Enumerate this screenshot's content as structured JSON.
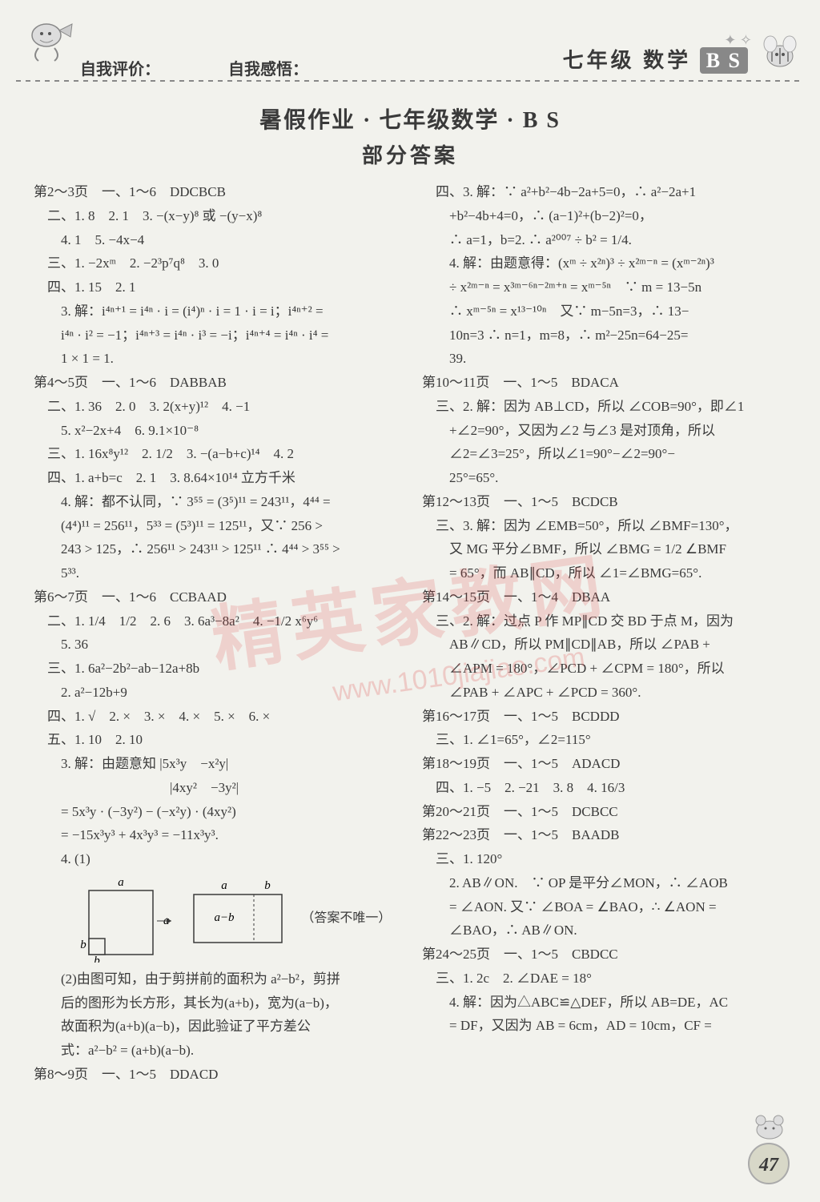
{
  "header": {
    "label1": "自我评价：",
    "label2": "自我感悟：",
    "grade": "七年级",
    "subject": "数学",
    "edition": "B S"
  },
  "title": {
    "main": "暑假作业 · 七年级数学 · B S",
    "sub": "部分答案"
  },
  "watermark": {
    "text1": "精英家教网",
    "text2": "www.1010jiajiao.com"
  },
  "page_number": "47",
  "diagram": {
    "labels": {
      "a": "a",
      "b": "b",
      "amb": "a−b"
    },
    "note": "（答案不唯一）",
    "box_stroke": "#3a3a3a",
    "box_fill": "none",
    "line_width": 1.5
  },
  "col_left": [
    "第2～3页　一、1～6　DDCBCB",
    "　二、1. 8　2. 1　3. −(x−y)⁸ 或 −(y−x)⁸",
    "　　4. 1　5. −4x−4",
    "　三、1. −2xᵐ　2. −2³p⁷q⁸　3. 0",
    "　四、1. 15　2. 1",
    "　　3. 解：i⁴ⁿ⁺¹ = i⁴ⁿ · i = (i⁴)ⁿ · i = 1 · i = i；i⁴ⁿ⁺² =",
    "　　i⁴ⁿ · i² = −1；i⁴ⁿ⁺³ = i⁴ⁿ · i³ = −i；i⁴ⁿ⁺⁴ = i⁴ⁿ · i⁴ =",
    "　　1 × 1 = 1.",
    "第4～5页　一、1～6　DABBAB",
    "　二、1. 36　2. 0　3. 2(x+y)¹²　4. −1",
    "　　5. x²−2x+4　6. 9.1×10⁻⁸",
    "　三、1. 16x⁸y¹²　2. 1/2　3. −(a−b+c)¹⁴　4. 2",
    "　四、1. a+b=c　2. 1　3. 8.64×10¹⁴ 立方千米",
    "　　4. 解：都不认同，∵ 3⁵⁵ = (3⁵)¹¹ = 243¹¹，4⁴⁴ =",
    "　　(4⁴)¹¹ = 256¹¹，5³³ = (5³)¹¹ = 125¹¹，又∵ 256 >",
    "　　243 > 125，∴ 256¹¹ > 243¹¹ > 125¹¹ ∴ 4⁴⁴ > 3⁵⁵ >",
    "　　5³³.",
    "第6～7页　一、1～6　CCBAAD",
    "　二、1. 1/4　1/2　2. 6　3. 6a³−8a²　4. −1/2 x⁶y⁶",
    "　　5. 36",
    "　三、1. 6a²−2b²−ab−12a+8b",
    "　　2. a²−12b+9",
    "　四、1. √　2. ×　3. ×　4. ×　5. ×　6. ×",
    "　五、1. 10　2. 10",
    "　　3. 解：由题意知 |5x³y　−x²y|",
    "　　　　　　　　　　|4xy²　−3y²|",
    "　　= 5x³y · (−3y²) − (−x²y) · (4xy²)",
    "　　= −15x³y³ + 4x³y³ = −11x³y³.",
    "　　4. (1)",
    "",
    "　　(2)由图可知，由于剪拼前的面积为 a²−b²，剪拼",
    "　　后的图形为长方形，其长为(a+b)，宽为(a−b)，",
    "　　故面积为(a+b)(a−b)，因此验证了平方差公",
    "　　式：a²−b² = (a+b)(a−b).",
    "第8～9页　一、1～5　DDACD"
  ],
  "col_right": [
    "　四、3. 解：∵ a²+b²−4b−2a+5=0，∴ a²−2a+1",
    "　　+b²−4b+4=0，∴ (a−1)²+(b−2)²=0，",
    "　　∴ a=1，b=2. ∴ a²⁰⁰⁷ ÷ b² = 1/4.",
    "　　4. 解：由题意得：(xᵐ ÷ x²ⁿ)³ ÷ x²ᵐ⁻ⁿ = (xᵐ⁻²ⁿ)³",
    "　　÷ x²ᵐ⁻ⁿ = x³ᵐ⁻⁶ⁿ⁻²ᵐ⁺ⁿ = xᵐ⁻⁵ⁿ　∵ m = 13−5n",
    "　　∴ xᵐ⁻⁵ⁿ = x¹³⁻¹⁰ⁿ　又∵ m−5n=3，∴ 13−",
    "　　10n=3 ∴ n=1，m=8，∴ m²−25n=64−25=",
    "　　39.",
    "第10～11页　一、1～5　BDACA",
    "　三、2. 解：因为 AB⊥CD，所以 ∠COB=90°，即∠1",
    "　　+∠2=90°，又因为∠2 与∠3 是对顶角，所以",
    "　　∠2=∠3=25°，所以∠1=90°−∠2=90°−",
    "　　25°=65°.",
    "第12～13页　一、1～5　BCDCB",
    "　三、3. 解：因为 ∠EMB=50°，所以 ∠BMF=130°，",
    "　　又 MG 平分∠BMF，所以 ∠BMG = 1/2 ∠BMF",
    "　　= 65°，而 AB∥CD，所以 ∠1=∠BMG=65°.",
    "第14～15页　一、1～4　DBAA",
    "　三、2. 解：过点 P 作 MP∥CD 交 BD 于点 M，因为",
    "　　AB∥CD，所以 PM∥CD∥AB，所以 ∠PAB +",
    "　　∠APM = 180°，∠PCD + ∠CPM = 180°，所以",
    "　　∠PAB + ∠APC + ∠PCD = 360°.",
    "第16～17页　一、1～5　BCDDD",
    "　三、1. ∠1=65°，∠2=115°",
    "第18～19页　一、1～5　ADACD",
    "　四、1. −5　2. −21　3. 8　4. 16/3",
    "第20～21页　一、1～5　DCBCC",
    "第22～23页　一、1～5　BAADB",
    "　三、1. 120°",
    "　　2. AB∥ON.　∵ OP 是平分∠MON，∴ ∠AOB",
    "　　= ∠AON. 又∵ ∠BOA = ∠BAO，∴ ∠AON =",
    "　　∠BAO，∴ AB∥ON.",
    "第24～25页　一、1～5　CBDCC",
    "　三、1. 2c　2. ∠DAE = 18°",
    "　　4. 解：因为△ABC≌△DEF，所以 AB=DE，AC",
    "　　= DF，又因为 AB = 6cm，AD = 10cm，CF ="
  ]
}
